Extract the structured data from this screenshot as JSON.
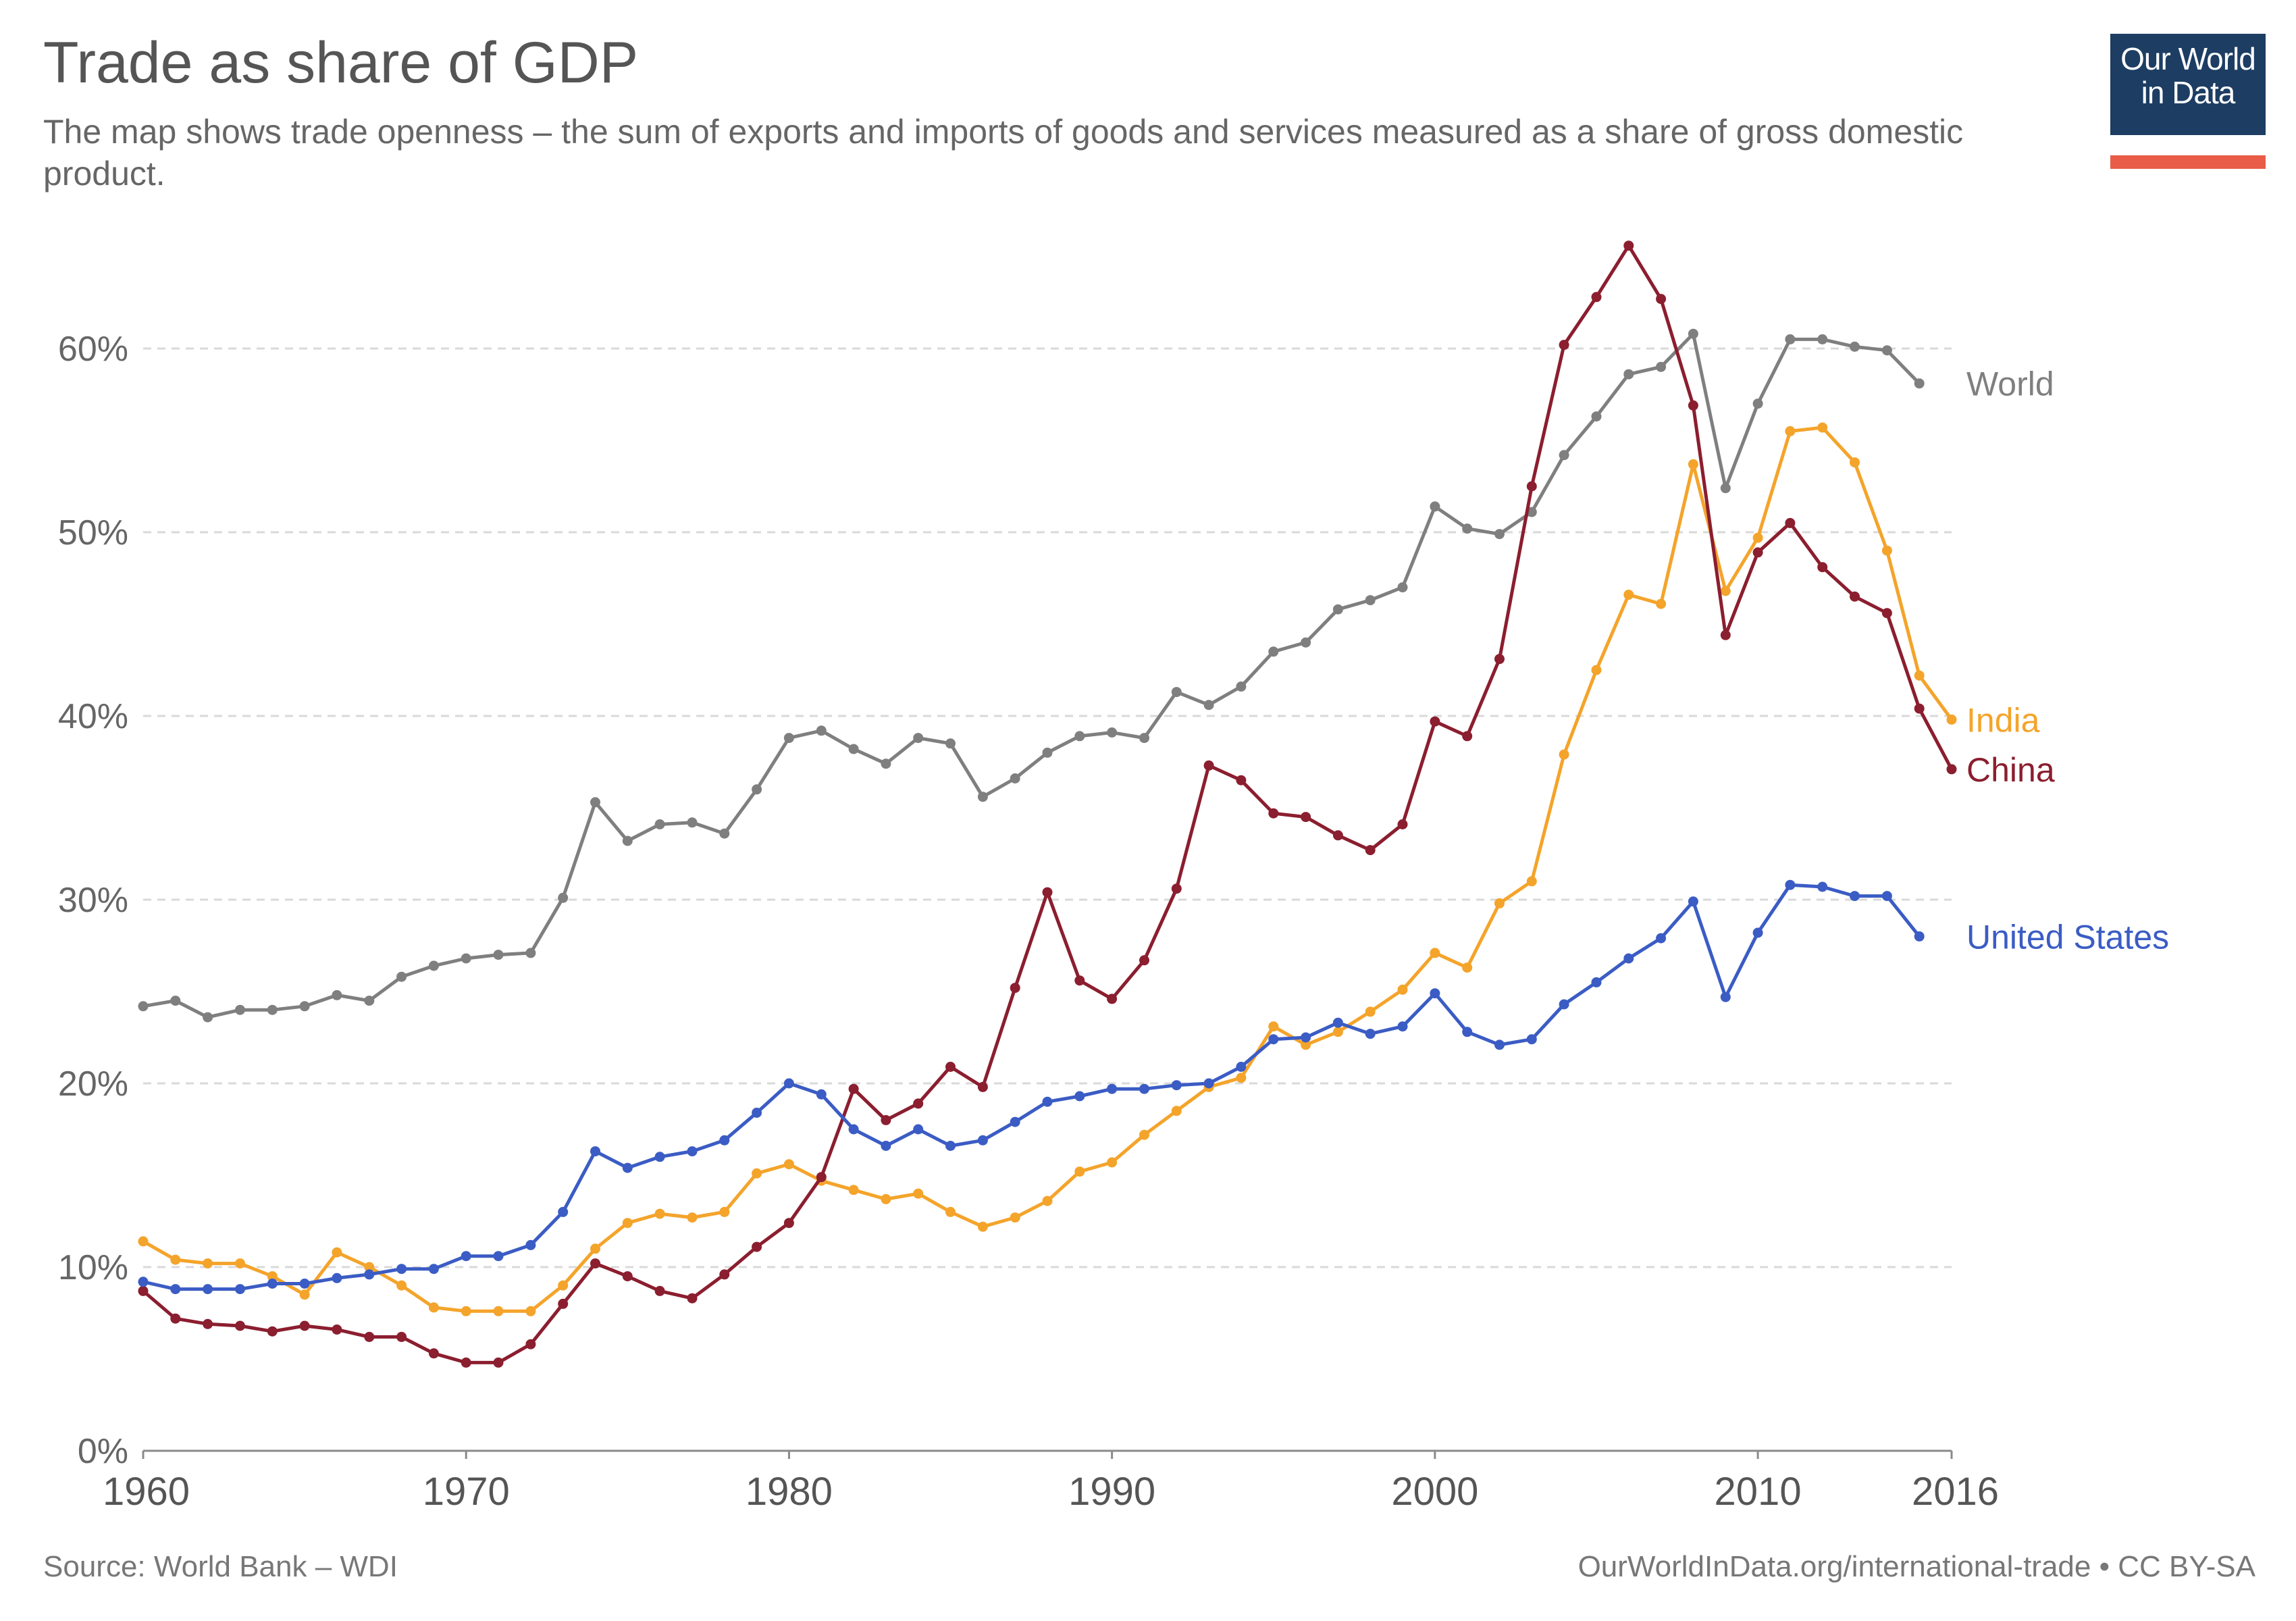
{
  "title": "Trade as share of GDP",
  "subtitle": "The map shows trade openness – the sum of exports and imports of goods and services measured as a share of gross domestic product.",
  "logo": {
    "line1": "Our World",
    "line2": "in Data"
  },
  "footer": {
    "source": "Source: World Bank – WDI",
    "credit": "OurWorldInData.org/international-trade • CC BY-SA"
  },
  "chart_data": {
    "type": "line",
    "title": "Trade as share of GDP",
    "xlabel": "",
    "ylabel": "",
    "xlim": [
      1960,
      2016
    ],
    "ylim": [
      0,
      66
    ],
    "y_ticks": [
      0,
      10,
      20,
      30,
      40,
      50,
      60
    ],
    "y_tick_labels": [
      "0%",
      "10%",
      "20%",
      "30%",
      "40%",
      "50%",
      "60%"
    ],
    "x_ticks": [
      1960,
      1970,
      1980,
      1990,
      2000,
      2010,
      2016
    ],
    "x_tick_labels": [
      "1960",
      "1970",
      "1980",
      "1990",
      "2000",
      "2010",
      "2016"
    ],
    "grid": true,
    "legend_placement": "line-end labels on right",
    "series": [
      {
        "name": "World",
        "color": "#7f7f7f",
        "start_year": 1960,
        "values": [
          24.2,
          24.5,
          23.6,
          24.0,
          24.0,
          24.2,
          24.8,
          24.5,
          25.8,
          26.4,
          26.8,
          27.0,
          27.1,
          30.1,
          35.3,
          33.2,
          34.1,
          34.2,
          33.6,
          36.0,
          38.8,
          39.2,
          38.2,
          37.4,
          38.8,
          38.5,
          35.6,
          36.6,
          38.0,
          38.9,
          39.1,
          38.8,
          41.3,
          40.6,
          41.6,
          43.5,
          44.0,
          45.8,
          46.3,
          47.0,
          51.4,
          50.2,
          49.9,
          51.1,
          54.2,
          56.3,
          58.6,
          59.0,
          60.8,
          52.4,
          57.0,
          60.5,
          60.5,
          60.1,
          59.9,
          58.1
        ]
      },
      {
        "name": "India",
        "color": "#f4a42b",
        "start_year": 1960,
        "values": [
          11.4,
          10.4,
          10.2,
          10.2,
          9.5,
          8.5,
          10.8,
          10.0,
          9.0,
          7.8,
          7.6,
          7.6,
          7.6,
          9.0,
          11.0,
          12.4,
          12.9,
          12.7,
          13.0,
          15.1,
          15.6,
          14.7,
          14.2,
          13.7,
          14.0,
          13.0,
          12.2,
          12.7,
          13.6,
          15.2,
          15.7,
          17.2,
          18.5,
          19.8,
          20.3,
          23.1,
          22.1,
          22.8,
          23.9,
          25.1,
          27.1,
          26.3,
          29.8,
          31.0,
          37.9,
          42.5,
          46.6,
          46.1,
          53.7,
          46.8,
          49.7,
          55.5,
          55.7,
          53.8,
          49.0,
          42.2,
          39.8
        ]
      },
      {
        "name": "China",
        "color": "#8b1e2f",
        "start_year": 1960,
        "values": [
          8.7,
          7.2,
          6.9,
          6.8,
          6.5,
          6.8,
          6.6,
          6.2,
          6.2,
          5.3,
          4.8,
          4.8,
          5.8,
          8.0,
          10.2,
          9.5,
          8.7,
          8.3,
          9.6,
          11.1,
          12.4,
          14.9,
          19.7,
          18.0,
          18.9,
          20.9,
          19.8,
          25.2,
          30.4,
          25.6,
          24.6,
          26.7,
          30.6,
          37.3,
          36.5,
          34.7,
          34.5,
          33.5,
          32.7,
          34.1,
          39.7,
          38.9,
          43.1,
          52.5,
          60.2,
          62.8,
          65.6,
          62.7,
          56.9,
          44.4,
          48.9,
          50.5,
          48.1,
          46.5,
          45.6,
          40.4,
          37.1
        ]
      },
      {
        "name": "United States",
        "color": "#3b5cc4",
        "start_year": 1960,
        "values": [
          9.2,
          8.8,
          8.8,
          8.8,
          9.1,
          9.1,
          9.4,
          9.6,
          9.9,
          9.9,
          10.6,
          10.6,
          11.2,
          13.0,
          16.3,
          15.4,
          16.0,
          16.3,
          16.9,
          18.4,
          20.0,
          19.4,
          17.5,
          16.6,
          17.5,
          16.6,
          16.9,
          17.9,
          19.0,
          19.3,
          19.7,
          19.7,
          19.9,
          20.0,
          20.9,
          22.4,
          22.5,
          23.3,
          22.7,
          23.1,
          24.9,
          22.8,
          22.1,
          22.4,
          24.3,
          25.5,
          26.8,
          27.9,
          29.9,
          24.7,
          28.2,
          30.8,
          30.7,
          30.2,
          30.2,
          28.0
        ]
      }
    ]
  }
}
